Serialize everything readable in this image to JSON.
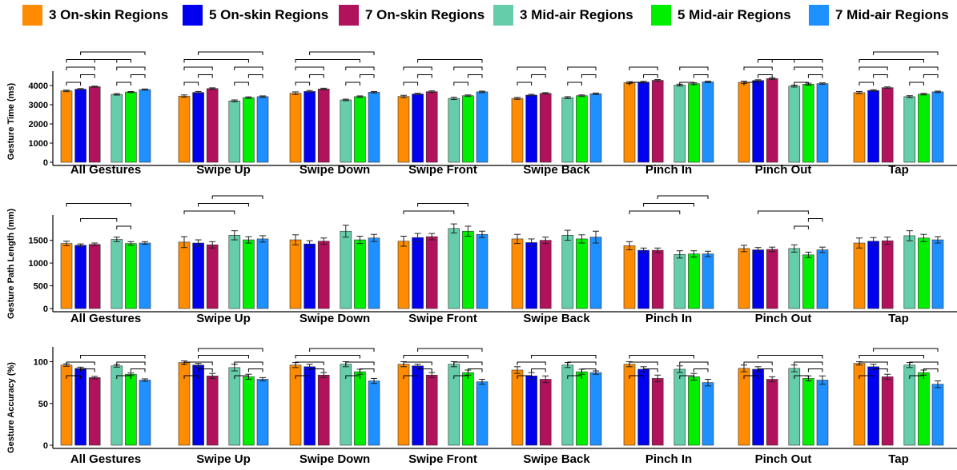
{
  "legend": [
    {
      "name": "3 On-skin Regions",
      "color": "#FF8C00"
    },
    {
      "name": "5 On-skin Regions",
      "color": "#0000EE"
    },
    {
      "name": "7 On-skin Regions",
      "color": "#B0125B"
    },
    {
      "name": "3 Mid-air Regions",
      "color": "#66CDAA"
    },
    {
      "name": "5 Mid-air Regions",
      "color": "#00EE00"
    },
    {
      "name": "7 Mid-air Regions",
      "color": "#1E90FF"
    }
  ],
  "chart_data": [
    {
      "type": "bar",
      "ylabel": "Gesture Time (ms)",
      "ylim": [
        0,
        4500
      ],
      "yticks": [
        "0",
        "1000",
        "2000",
        "3000",
        "4000"
      ],
      "categories": [
        "All Gestures",
        "Swipe Up",
        "Swipe Down",
        "Swipe Front",
        "Swipe Back",
        "Pinch In",
        "Pinch Out",
        "Tap"
      ],
      "series": [
        {
          "name": "3 On-skin Regions",
          "values": [
            3720,
            3450,
            3600,
            3430,
            3330,
            4150,
            4170,
            3630
          ],
          "errors": [
            40,
            60,
            70,
            60,
            50,
            50,
            60,
            60
          ]
        },
        {
          "name": "5 On-skin Regions",
          "values": [
            3810,
            3640,
            3690,
            3560,
            3500,
            4180,
            4260,
            3740
          ],
          "errors": [
            30,
            50,
            50,
            40,
            40,
            40,
            40,
            40
          ]
        },
        {
          "name": "7 On-skin Regions",
          "values": [
            3940,
            3840,
            3820,
            3680,
            3590,
            4270,
            4360,
            3890
          ],
          "errors": [
            30,
            40,
            40,
            40,
            40,
            40,
            40,
            40
          ]
        },
        {
          "name": "3 Mid-air Regions",
          "values": [
            3540,
            3200,
            3250,
            3330,
            3370,
            4020,
            3970,
            3420
          ],
          "errors": [
            40,
            50,
            40,
            60,
            50,
            50,
            50,
            50
          ]
        },
        {
          "name": "5 Mid-air Regions",
          "values": [
            3660,
            3370,
            3420,
            3470,
            3470,
            4100,
            4070,
            3550
          ],
          "errors": [
            30,
            40,
            40,
            40,
            40,
            50,
            50,
            40
          ]
        },
        {
          "name": "7 Mid-air Regions",
          "values": [
            3790,
            3420,
            3650,
            3670,
            3570,
            4190,
            4100,
            3670
          ],
          "errors": [
            30,
            40,
            40,
            40,
            40,
            40,
            40,
            40
          ]
        }
      ],
      "significance": [
        [
          [
            0,
            1
          ],
          [
            1,
            2
          ],
          [
            0,
            2
          ],
          [
            3,
            4
          ],
          [
            4,
            5
          ],
          [
            3,
            5
          ],
          [
            2,
            3
          ],
          [
            0,
            4
          ],
          [
            1,
            5
          ]
        ],
        [
          [
            0,
            1
          ],
          [
            1,
            2
          ],
          [
            0,
            2
          ],
          [
            3,
            4
          ],
          [
            4,
            5
          ],
          [
            3,
            5
          ],
          [
            0,
            4
          ],
          [
            1,
            5
          ]
        ],
        [
          [
            0,
            1
          ],
          [
            1,
            2
          ],
          [
            0,
            2
          ],
          [
            3,
            4
          ],
          [
            4,
            5
          ],
          [
            3,
            5
          ],
          [
            0,
            4
          ],
          [
            1,
            5
          ]
        ],
        [
          [
            0,
            1
          ],
          [
            1,
            2
          ],
          [
            0,
            2
          ],
          [
            3,
            4
          ],
          [
            4,
            5
          ],
          [
            3,
            5
          ],
          [
            1,
            5
          ]
        ],
        [
          [
            0,
            1
          ],
          [
            1,
            2
          ],
          [
            0,
            2
          ],
          [
            3,
            4
          ],
          [
            4,
            5
          ],
          [
            3,
            5
          ]
        ],
        [
          [
            0,
            1
          ],
          [
            1,
            2
          ],
          [
            0,
            2
          ],
          [
            3,
            4
          ],
          [
            4,
            5
          ],
          [
            3,
            5
          ]
        ],
        [
          [
            0,
            1
          ],
          [
            1,
            2
          ],
          [
            0,
            2
          ],
          [
            3,
            4
          ],
          [
            4,
            5
          ],
          [
            3,
            5
          ],
          [
            2,
            3
          ],
          [
            1,
            5
          ]
        ],
        [
          [
            0,
            1
          ],
          [
            1,
            2
          ],
          [
            0,
            2
          ],
          [
            3,
            4
          ],
          [
            4,
            5
          ],
          [
            3,
            5
          ],
          [
            0,
            4
          ],
          [
            1,
            5
          ]
        ]
      ]
    },
    {
      "type": "bar",
      "ylabel": "Gesture Path Length (mm)",
      "ylim": [
        0,
        1950
      ],
      "yticks": [
        "0",
        "500",
        "1000",
        "1500"
      ],
      "categories": [
        "All Gestures",
        "Swipe Up",
        "Swipe Down",
        "Swipe Front",
        "Swipe Back",
        "Pinch In",
        "Pinch Out",
        "Tap"
      ],
      "series": [
        {
          "name": "3 On-skin Regions",
          "values": [
            1430,
            1460,
            1510,
            1480,
            1530,
            1380,
            1320,
            1440
          ],
          "errors": [
            50,
            120,
            110,
            110,
            100,
            90,
            70,
            110
          ]
        },
        {
          "name": "5 On-skin Regions",
          "values": [
            1390,
            1440,
            1420,
            1560,
            1450,
            1280,
            1290,
            1480
          ],
          "errors": [
            30,
            70,
            70,
            90,
            80,
            50,
            50,
            80
          ]
        },
        {
          "name": "7 On-skin Regions",
          "values": [
            1410,
            1400,
            1480,
            1580,
            1500,
            1280,
            1300,
            1490
          ],
          "errors": [
            30,
            70,
            70,
            70,
            70,
            50,
            50,
            80
          ]
        },
        {
          "name": "3 Mid-air Regions",
          "values": [
            1520,
            1610,
            1700,
            1760,
            1610,
            1190,
            1320,
            1600
          ],
          "errors": [
            50,
            100,
            130,
            100,
            110,
            80,
            80,
            110
          ]
        },
        {
          "name": "5 Mid-air Regions",
          "values": [
            1430,
            1510,
            1510,
            1700,
            1530,
            1200,
            1180,
            1550
          ],
          "errors": [
            40,
            70,
            80,
            110,
            90,
            70,
            60,
            80
          ]
        },
        {
          "name": "7 Mid-air Regions",
          "values": [
            1440,
            1530,
            1550,
            1630,
            1570,
            1200,
            1290,
            1510
          ],
          "errors": [
            30,
            70,
            80,
            70,
            130,
            60,
            60,
            70
          ]
        }
      ],
      "significance": [
        [
          [
            3,
            4
          ],
          [
            1,
            3
          ],
          [
            0,
            4
          ]
        ],
        [
          [
            0,
            3
          ],
          [
            1,
            4
          ],
          [
            2,
            5
          ]
        ],
        [],
        [
          [
            0,
            3
          ],
          [
            1,
            4
          ]
        ],
        [],
        [
          [
            0,
            3
          ],
          [
            1,
            4
          ],
          [
            2,
            5
          ]
        ],
        [
          [
            3,
            4
          ],
          [
            4,
            5
          ],
          [
            1,
            4
          ]
        ],
        []
      ]
    },
    {
      "type": "bar",
      "ylabel": "Gesture Accuracy (%)",
      "ylim": [
        0,
        112
      ],
      "yticks": [
        "0",
        "50",
        "100"
      ],
      "categories": [
        "All Gestures",
        "Swipe Up",
        "Swipe Down",
        "Swipe Front",
        "Swipe Back",
        "Pinch In",
        "Pinch Out",
        "Tap"
      ],
      "series": [
        {
          "name": "3 On-skin Regions",
          "values": [
            96,
            99,
            96,
            97,
            90,
            97,
            92,
            98
          ],
          "errors": [
            1.5,
            2,
            3,
            3,
            4,
            3,
            4,
            2
          ]
        },
        {
          "name": "5 On-skin Regions",
          "values": [
            92,
            96,
            94,
            95,
            83,
            91,
            91,
            94
          ],
          "errors": [
            1.5,
            2,
            3,
            2,
            4,
            3,
            3,
            3
          ]
        },
        {
          "name": "7 On-skin Regions",
          "values": [
            81,
            83,
            84,
            84,
            79,
            80,
            79,
            82
          ],
          "errors": [
            1.5,
            3,
            3,
            3,
            4,
            4,
            3,
            3
          ]
        },
        {
          "name": "3 Mid-air Regions",
          "values": [
            95,
            93,
            97,
            97,
            96,
            91,
            92,
            96
          ],
          "errors": [
            1.5,
            4,
            3,
            3,
            3,
            4,
            4,
            3
          ]
        },
        {
          "name": "5 Mid-air Regions",
          "values": [
            85,
            82,
            88,
            87,
            88,
            82,
            80,
            87
          ],
          "errors": [
            1.5,
            3,
            3,
            3,
            3,
            4,
            3,
            3
          ]
        },
        {
          "name": "7 Mid-air Regions",
          "values": [
            78,
            79,
            77,
            76,
            87,
            75,
            78,
            73
          ],
          "errors": [
            1.5,
            2,
            3,
            3,
            2,
            4,
            5,
            4
          ]
        }
      ],
      "significance": [
        [
          [
            0,
            1
          ],
          [
            1,
            2
          ],
          [
            0,
            2
          ],
          [
            3,
            4
          ],
          [
            4,
            5
          ],
          [
            3,
            5
          ],
          [
            1,
            5
          ]
        ],
        [
          [
            0,
            1
          ],
          [
            1,
            2
          ],
          [
            0,
            2
          ],
          [
            3,
            4
          ],
          [
            4,
            5
          ],
          [
            3,
            5
          ],
          [
            1,
            4
          ],
          [
            1,
            5
          ]
        ],
        [
          [
            0,
            1
          ],
          [
            1,
            2
          ],
          [
            0,
            2
          ],
          [
            3,
            4
          ],
          [
            4,
            5
          ],
          [
            3,
            5
          ],
          [
            0,
            4
          ],
          [
            1,
            5
          ]
        ],
        [
          [
            0,
            1
          ],
          [
            1,
            2
          ],
          [
            0,
            2
          ],
          [
            3,
            4
          ],
          [
            4,
            5
          ],
          [
            3,
            5
          ],
          [
            0,
            4
          ],
          [
            1,
            5
          ]
        ],
        [
          [
            0,
            1
          ],
          [
            1,
            2
          ],
          [
            0,
            2
          ],
          [
            3,
            4
          ],
          [
            4,
            5
          ],
          [
            3,
            5
          ],
          [
            1,
            5
          ]
        ],
        [
          [
            0,
            1
          ],
          [
            1,
            2
          ],
          [
            0,
            2
          ],
          [
            3,
            4
          ],
          [
            4,
            5
          ],
          [
            3,
            5
          ],
          [
            0,
            4
          ]
        ],
        [
          [
            0,
            1
          ],
          [
            1,
            2
          ],
          [
            0,
            2
          ],
          [
            3,
            4
          ],
          [
            4,
            5
          ],
          [
            3,
            5
          ],
          [
            1,
            5
          ]
        ],
        [
          [
            0,
            1
          ],
          [
            1,
            2
          ],
          [
            0,
            2
          ],
          [
            3,
            4
          ],
          [
            4,
            5
          ],
          [
            3,
            5
          ],
          [
            0,
            4
          ],
          [
            1,
            5
          ]
        ]
      ]
    }
  ]
}
